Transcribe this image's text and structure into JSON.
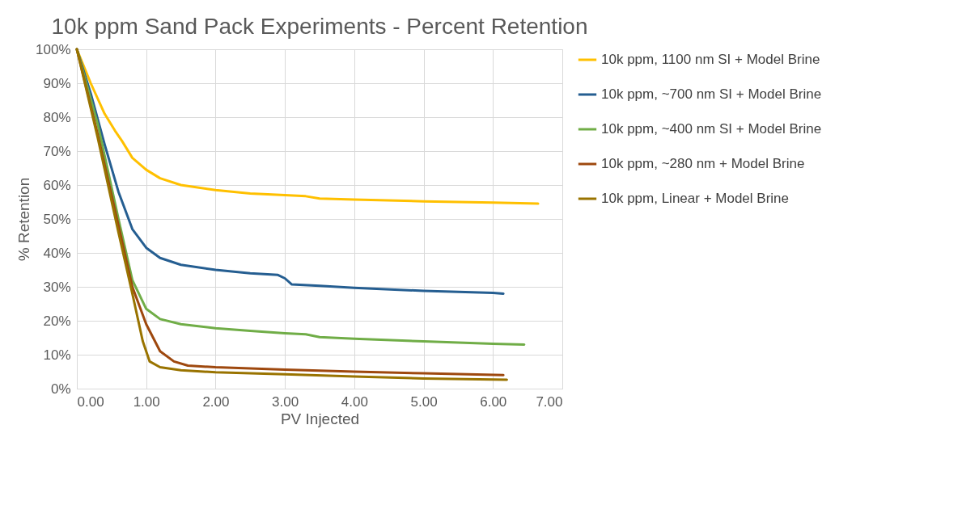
{
  "chart_data": {
    "type": "line",
    "title": "10k ppm Sand Pack Experiments - Percent Retention",
    "xlabel": "PV Injected",
    "ylabel": "% Retention",
    "xlim": [
      0,
      7
    ],
    "xticks": [
      {
        "value": 0,
        "label": "0.00"
      },
      {
        "value": 1,
        "label": "1.00"
      },
      {
        "value": 2,
        "label": "2.00"
      },
      {
        "value": 3,
        "label": "3.00"
      },
      {
        "value": 4,
        "label": "4.00"
      },
      {
        "value": 5,
        "label": "5.00"
      },
      {
        "value": 6,
        "label": "6.00"
      },
      {
        "value": 7,
        "label": "7.00"
      }
    ],
    "ylim": [
      0,
      100
    ],
    "yticks": [
      {
        "value": 0,
        "label": "0%"
      },
      {
        "value": 10,
        "label": "10%"
      },
      {
        "value": 20,
        "label": "20%"
      },
      {
        "value": 30,
        "label": "30%"
      },
      {
        "value": 40,
        "label": "40%"
      },
      {
        "value": 50,
        "label": "50%"
      },
      {
        "value": 60,
        "label": "60%"
      },
      {
        "value": 70,
        "label": "70%"
      },
      {
        "value": 80,
        "label": "80%"
      },
      {
        "value": 90,
        "label": "90%"
      },
      {
        "value": 100,
        "label": "100%"
      }
    ],
    "grid": true,
    "legend": "right",
    "marker": "none",
    "line_style": "solid",
    "series": [
      {
        "name": "10k ppm, 1100 nm SI + Model Brine",
        "color": "#ffc000",
        "x": [
          0,
          0.2,
          0.4,
          0.55,
          0.65,
          0.8,
          1.0,
          1.2,
          1.5,
          2.0,
          2.5,
          3.0,
          3.3,
          3.5,
          4,
          5,
          6,
          6.65
        ],
        "values": [
          100,
          90,
          81,
          76,
          73,
          68,
          64.5,
          62,
          60,
          58.5,
          57.5,
          57,
          56.7,
          56,
          55.7,
          55.2,
          54.8,
          54.5
        ]
      },
      {
        "name": "10k ppm, ~700 nm SI + Model Brine",
        "color": "#255e91",
        "x": [
          0,
          0.2,
          0.4,
          0.6,
          0.8,
          1.0,
          1.2,
          1.5,
          2.0,
          2.5,
          2.9,
          3.0,
          3.1,
          3.5,
          4,
          5,
          6,
          6.15
        ],
        "values": [
          100,
          87,
          72,
          58,
          47,
          41.5,
          38.5,
          36.5,
          35,
          34,
          33.5,
          32.5,
          30.7,
          30.3,
          29.7,
          28.8,
          28.2,
          28
        ]
      },
      {
        "name": "10k ppm, ~400 nm SI + Model Brine",
        "color": "#70ad47",
        "x": [
          0,
          0.3,
          0.6,
          0.8,
          1.0,
          1.2,
          1.5,
          2.0,
          2.5,
          3.0,
          3.3,
          3.5,
          4,
          5,
          6,
          6.45
        ],
        "values": [
          100,
          78,
          50,
          32,
          23.5,
          20.5,
          19,
          17.8,
          17,
          16.3,
          16,
          15.2,
          14.7,
          13.9,
          13.2,
          13
        ]
      },
      {
        "name": "10k ppm, ~280 nm + Model Brine",
        "color": "#9e480e",
        "x": [
          0,
          0.3,
          0.6,
          0.8,
          1.0,
          1.2,
          1.4,
          1.6,
          2.0,
          3,
          4,
          5,
          6.15
        ],
        "values": [
          100,
          75,
          48,
          30,
          19,
          11,
          8,
          6.8,
          6.3,
          5.6,
          5,
          4.5,
          4
        ]
      },
      {
        "name": "10k ppm, Linear + Model Brine",
        "color": "#997300",
        "x": [
          0,
          0.3,
          0.6,
          0.8,
          0.95,
          1.05,
          1.2,
          1.5,
          2,
          3,
          4,
          5,
          6.2
        ],
        "values": [
          100,
          74,
          46,
          28,
          14,
          8,
          6.3,
          5.4,
          4.8,
          4.2,
          3.6,
          3,
          2.6
        ]
      }
    ]
  }
}
